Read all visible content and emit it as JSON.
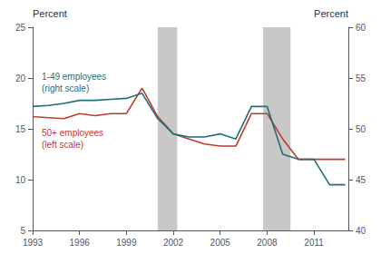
{
  "chart_data": {
    "type": "line",
    "ylabel": "Percent",
    "y2label": "Percent",
    "x": [
      1993,
      1994,
      1995,
      1996,
      1997,
      1998,
      1999,
      2000,
      2001,
      2002,
      2003,
      2004,
      2005,
      2006,
      2007,
      2008,
      2009,
      2010,
      2011,
      2012,
      2013
    ],
    "xlim": [
      1993,
      2013.2
    ],
    "xticks": [
      1993,
      1996,
      1999,
      2002,
      2005,
      2008,
      2011
    ],
    "ylim": [
      5,
      25
    ],
    "yticks": [
      5,
      10,
      15,
      20,
      25
    ],
    "y2lim": [
      40,
      60
    ],
    "y2ticks": [
      40,
      45,
      50,
      55,
      60
    ],
    "grid": false,
    "series": [
      {
        "color": "#c0392b",
        "values": [
          16.2,
          16.1,
          16.0,
          16.5,
          16.3,
          16.5,
          16.5,
          19.0,
          16.2,
          14.5,
          14.0,
          13.5,
          13.3,
          13.3,
          16.5,
          16.5,
          14.0,
          12.0,
          12.0,
          12.0,
          12.0
        ]
      },
      {
        "color": "#1f6e78",
        "axis": "y2",
        "values": [
          52.2,
          52.3,
          52.5,
          52.8,
          52.8,
          52.9,
          53.0,
          53.5,
          51.0,
          49.5,
          49.2,
          49.2,
          49.5,
          49.0,
          52.2,
          52.2,
          47.5,
          47.0,
          47.0,
          44.5,
          44.5
        ]
      }
    ],
    "annotations": [
      {
        "text": "1-49 employees\n(right scale)",
        "color": "#1f6e78"
      },
      {
        "text": "50+ employees\n(left scale)",
        "color": "#c0392b"
      }
    ],
    "shaded_bands": {
      "color": "#c8c8c8",
      "ranges": [
        [
          2001.0,
          2002.25
        ],
        [
          2007.75,
          2009.5
        ]
      ]
    }
  }
}
